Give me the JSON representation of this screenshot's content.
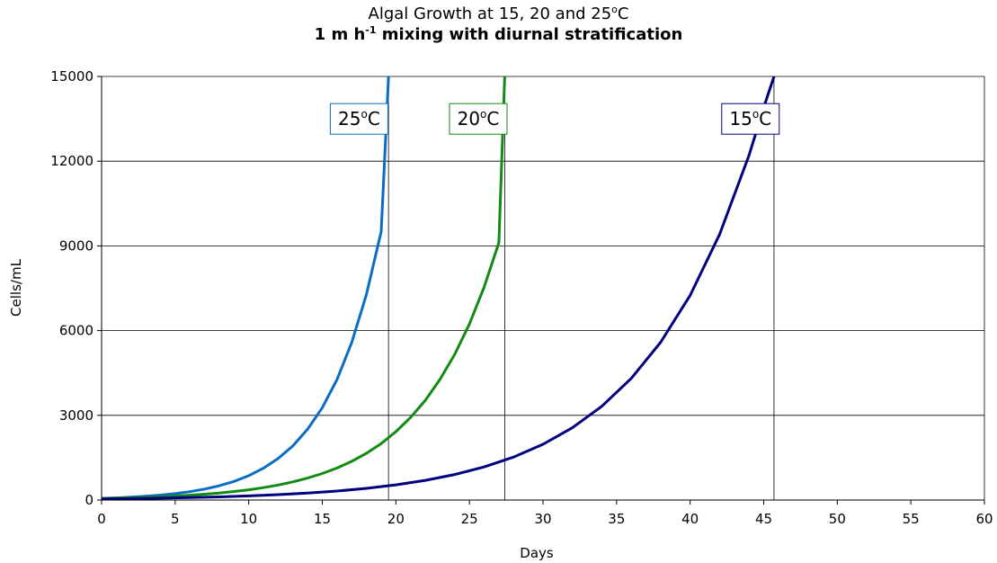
{
  "chart_data": {
    "type": "line",
    "title": {
      "line1_prefix": "Algal Growth at 15, 20 and 25",
      "line1_deg": "o",
      "line1_suffix": "C",
      "line2_prefix": "1 m h",
      "line2_sup": "-1",
      "line2_suffix": " mixing with diurnal stratification"
    },
    "xlabel": "Days",
    "ylabel": "Cells/mL",
    "xlim": [
      0,
      60
    ],
    "ylim": [
      0,
      15000
    ],
    "x_ticks": [
      0,
      5,
      10,
      15,
      20,
      25,
      30,
      35,
      40,
      45,
      50,
      55,
      60
    ],
    "y_ticks": [
      0,
      3000,
      6000,
      9000,
      12000,
      15000
    ],
    "grid": "horizontal",
    "series": [
      {
        "name_num": "25",
        "name_deg": "o",
        "name_unit": "C",
        "color": "#0a6cc4",
        "marker_x": 19.5,
        "label_x": 17.5,
        "x": [
          0,
          1,
          2,
          3,
          4,
          5,
          6,
          7,
          8,
          9,
          10,
          11,
          12,
          13,
          14,
          15,
          16,
          17,
          18,
          19,
          19.5
        ],
        "y": [
          60,
          78,
          102,
          133,
          174,
          227,
          297,
          387,
          506,
          660,
          862,
          1126,
          1470,
          1919,
          2505,
          3271,
          4271,
          5577,
          7281,
          9507,
          15000
        ]
      },
      {
        "name_num": "20",
        "name_deg": "o",
        "name_unit": "C",
        "color": "#138a13",
        "marker_x": 27.4,
        "label_x": 25.6,
        "x": [
          0,
          1,
          2,
          3,
          4,
          5,
          6,
          7,
          8,
          9,
          10,
          11,
          12,
          13,
          14,
          15,
          16,
          17,
          18,
          19,
          20,
          21,
          22,
          23,
          24,
          25,
          26,
          27,
          27.4
        ],
        "y": [
          55,
          66,
          80,
          97,
          117,
          141,
          171,
          206,
          249,
          301,
          364,
          440,
          532,
          642,
          776,
          938,
          1134,
          1370,
          1656,
          2001,
          2419,
          2923,
          3533,
          4270,
          5160,
          6237,
          7538,
          9110,
          15000
        ]
      },
      {
        "name_num": "15",
        "name_deg": "o",
        "name_unit": "C",
        "color": "#000080",
        "marker_x": 45.7,
        "label_x": 44.1,
        "x": [
          0,
          2,
          4,
          6,
          8,
          10,
          12,
          14,
          16,
          18,
          20,
          22,
          24,
          26,
          28,
          30,
          32,
          34,
          36,
          38,
          40,
          42,
          44,
          45,
          45.7
        ],
        "y": [
          40,
          52,
          67,
          87,
          113,
          146,
          190,
          246,
          319,
          414,
          537,
          697,
          904,
          1173,
          1521,
          1973,
          2560,
          3321,
          4308,
          5588,
          7250,
          9404,
          12200,
          13900,
          15000
        ]
      }
    ]
  }
}
